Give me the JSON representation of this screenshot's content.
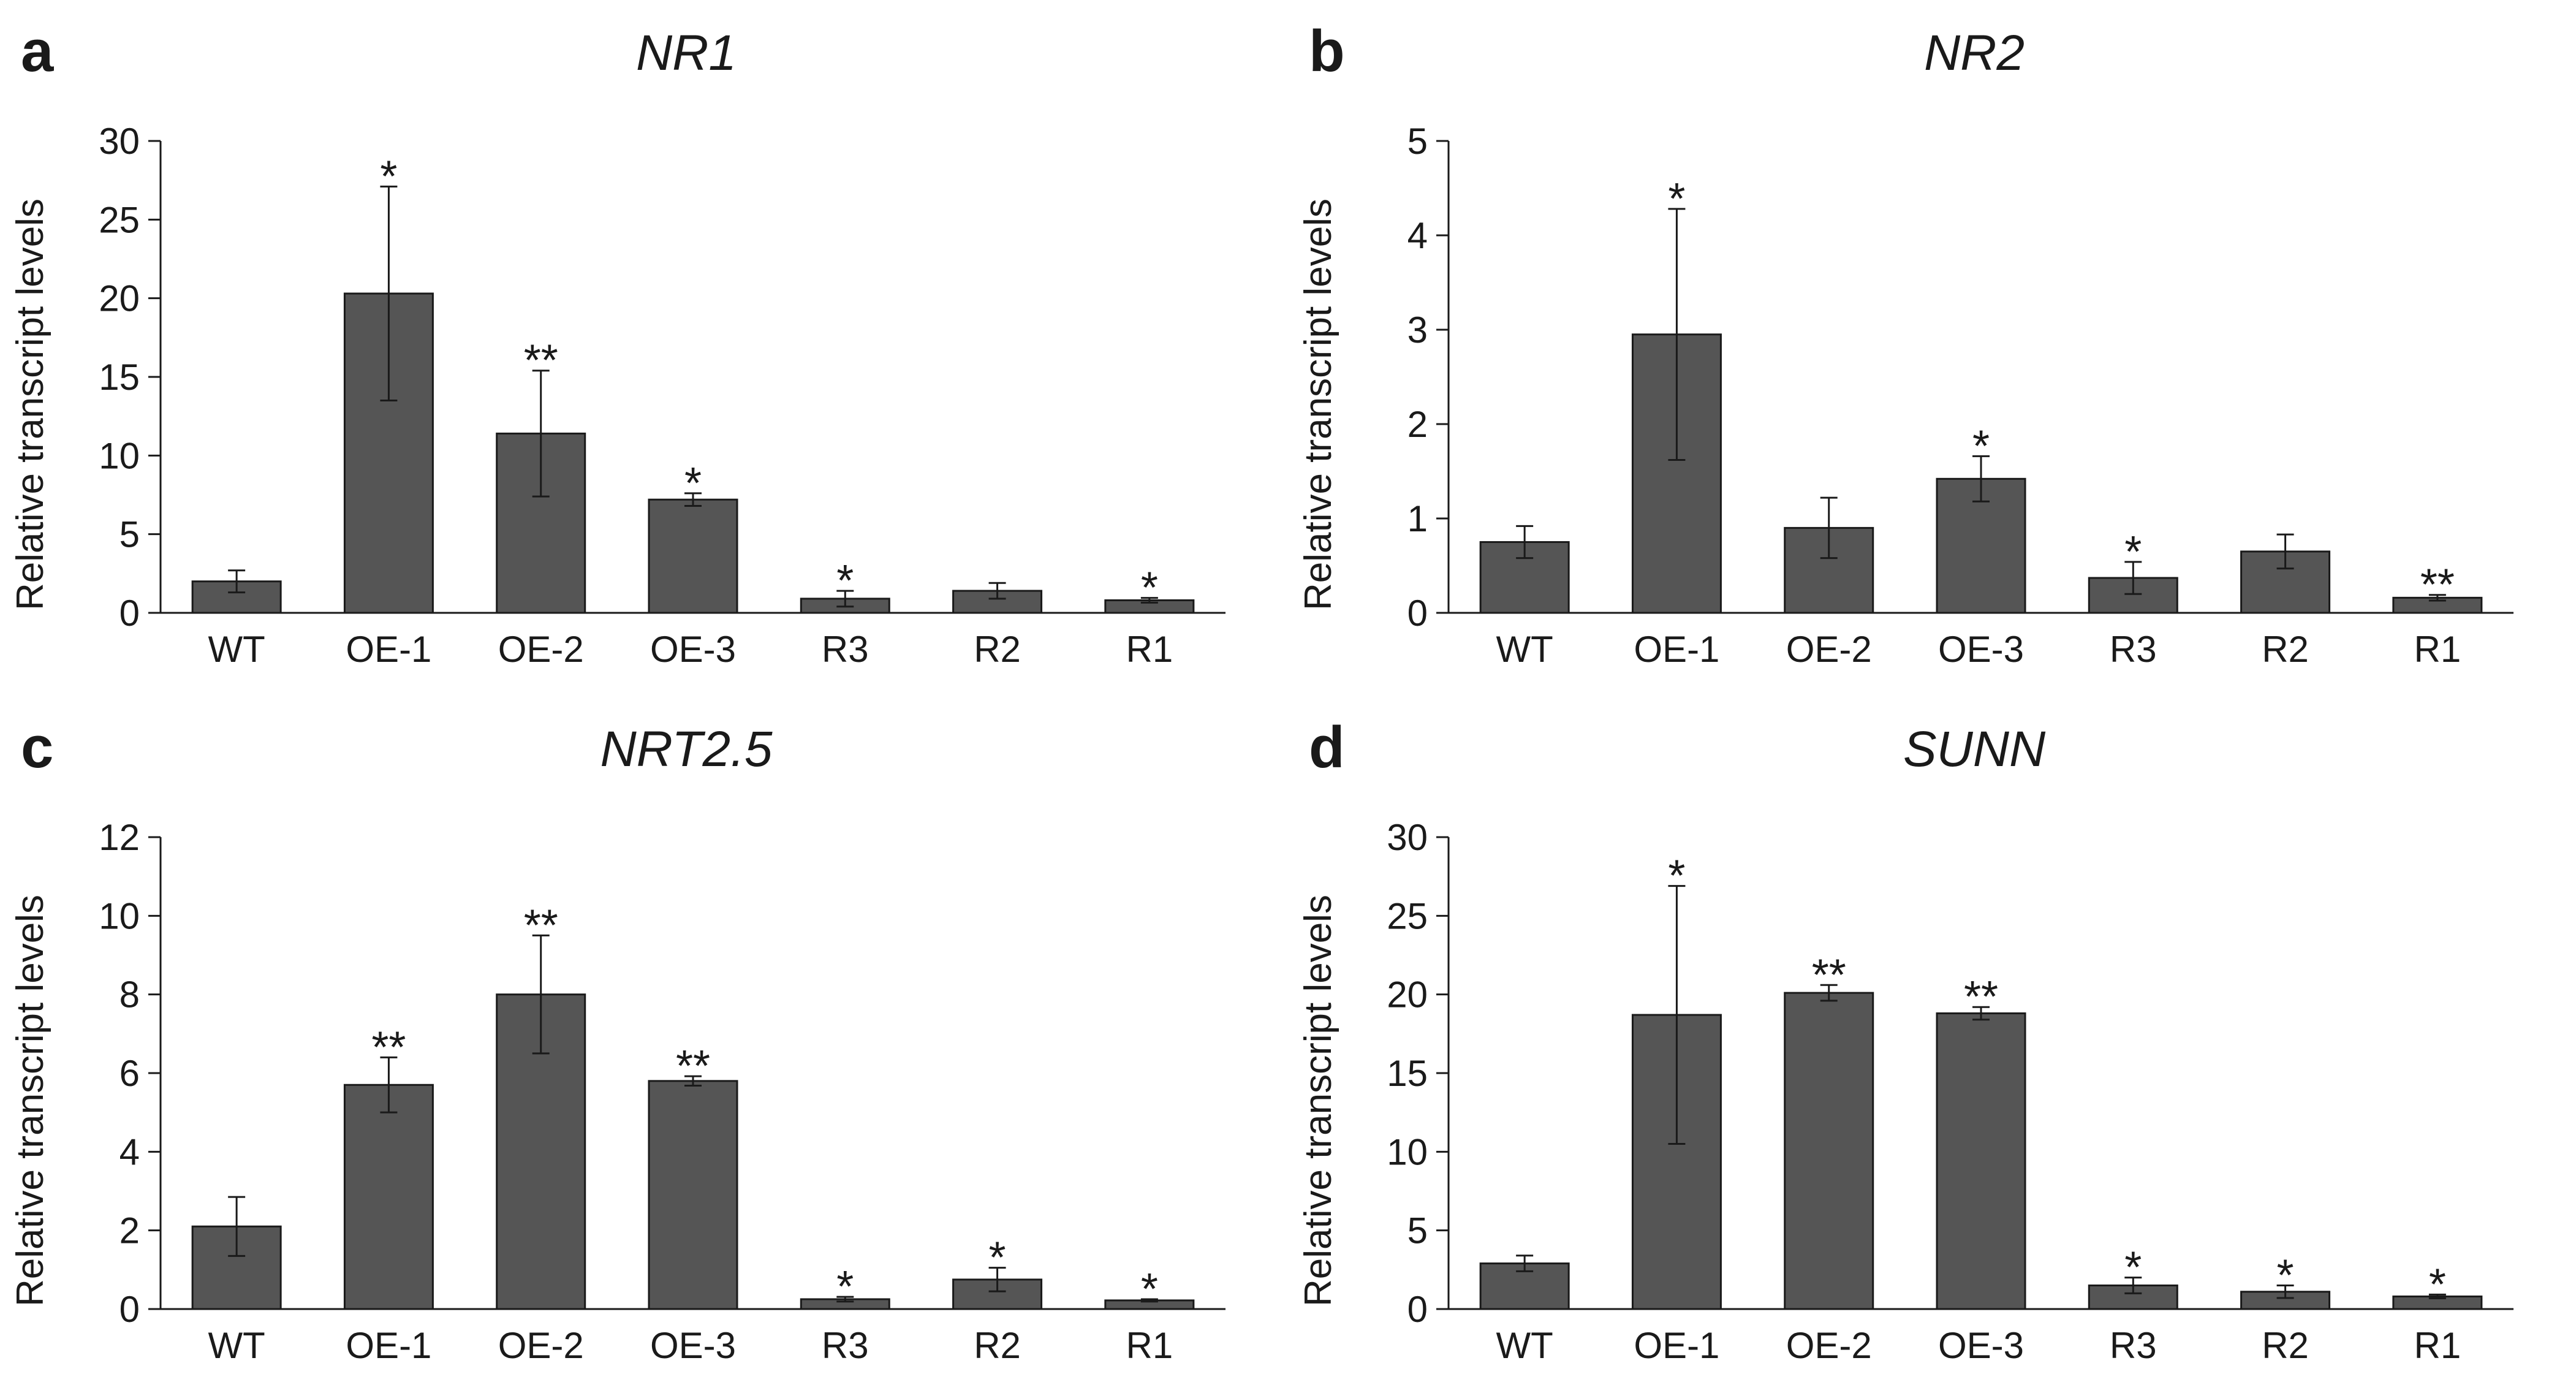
{
  "colors": {
    "bar": "#555555",
    "bar_outline": "#1a1a1a",
    "axis": "#1a1a1a",
    "text": "#1a1a1a"
  },
  "chart_data": [
    {
      "type": "bar",
      "panel": "a",
      "title": "NR1",
      "xlabel": "",
      "ylabel": "Relative transcript levels",
      "ylim": [
        0,
        30
      ],
      "yticks": [
        0,
        5,
        10,
        15,
        20,
        25,
        30
      ],
      "ytick_labels": [
        "0",
        "5",
        "10",
        "15",
        "20",
        "25",
        "30"
      ],
      "categories": [
        "WT",
        "OE-1",
        "OE-2",
        "OE-3",
        "R3",
        "R2",
        "R1"
      ],
      "values": [
        2.0,
        20.3,
        11.4,
        7.2,
        0.9,
        1.4,
        0.8
      ],
      "errors": [
        0.7,
        6.8,
        4.0,
        0.4,
        0.5,
        0.5,
        0.15
      ],
      "significance": [
        "",
        "*",
        "**",
        "*",
        "*",
        "",
        "*"
      ]
    },
    {
      "type": "bar",
      "panel": "b",
      "title": "NR2",
      "xlabel": "",
      "ylabel": "Relative transcript levels",
      "ylim": [
        0,
        5
      ],
      "yticks": [
        0,
        1,
        2,
        3,
        4,
        5
      ],
      "ytick_labels": [
        "0",
        "1",
        "2",
        "3",
        "4",
        "5"
      ],
      "categories": [
        "WT",
        "OE-1",
        "OE-2",
        "OE-3",
        "R3",
        "R2",
        "R1"
      ],
      "values": [
        0.75,
        2.95,
        0.9,
        1.42,
        0.37,
        0.65,
        0.16
      ],
      "errors": [
        0.17,
        1.33,
        0.32,
        0.24,
        0.17,
        0.18,
        0.03
      ],
      "significance": [
        "",
        "*",
        "",
        "*",
        "*",
        "",
        "**"
      ]
    },
    {
      "type": "bar",
      "panel": "c",
      "title": "NRT2.5",
      "xlabel": "",
      "ylabel": "Relative transcript levels",
      "ylim": [
        0,
        12
      ],
      "yticks": [
        0,
        2,
        4,
        6,
        8,
        10,
        12
      ],
      "ytick_labels": [
        "0",
        "2",
        "4",
        "6",
        "8",
        "10",
        "12"
      ],
      "categories": [
        "WT",
        "OE-1",
        "OE-2",
        "OE-3",
        "R3",
        "R2",
        "R1"
      ],
      "values": [
        2.1,
        5.7,
        8.0,
        5.8,
        0.25,
        0.75,
        0.22
      ],
      "errors": [
        0.75,
        0.7,
        1.5,
        0.12,
        0.06,
        0.3,
        0.03
      ],
      "significance": [
        "",
        "**",
        "**",
        "**",
        "*",
        "*",
        "*"
      ]
    },
    {
      "type": "bar",
      "panel": "d",
      "title": "SUNN",
      "xlabel": "",
      "ylabel": "Relative transcript levels",
      "ylim": [
        0,
        30
      ],
      "yticks": [
        0,
        5,
        10,
        15,
        20,
        25,
        30
      ],
      "ytick_labels": [
        "0",
        "5",
        "10",
        "15",
        "20",
        "25",
        "30"
      ],
      "categories": [
        "WT",
        "OE-1",
        "OE-2",
        "OE-3",
        "R3",
        "R2",
        "R1"
      ],
      "values": [
        2.9,
        18.7,
        20.1,
        18.8,
        1.5,
        1.1,
        0.8
      ],
      "errors": [
        0.5,
        8.2,
        0.5,
        0.4,
        0.5,
        0.4,
        0.12
      ],
      "significance": [
        "",
        "*",
        "**",
        "**",
        "*",
        "*",
        "*"
      ]
    }
  ]
}
